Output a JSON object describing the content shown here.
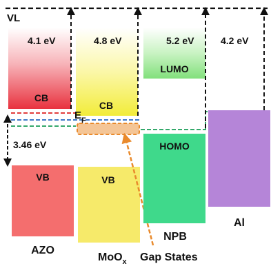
{
  "diagram": {
    "vacuum_level": "VL",
    "materials": {
      "azo": {
        "name": "AZO",
        "work_function": "4.1 eV",
        "cb": "CB",
        "vb": "VB",
        "gap": "3.46 eV",
        "cb_color": "#e8323f",
        "vb_color": "#f46e6e"
      },
      "moox": {
        "name_main": "MoO",
        "name_sub": "x",
        "work_function": "4.8 eV",
        "cb": "CB",
        "vb": "VB",
        "fermi_main": "E",
        "fermi_sub": "F",
        "cb_color": "#f3ee2a",
        "vb_color": "#f6ea6a"
      },
      "npb": {
        "name": "NPB",
        "work_function": "5.2 eV",
        "lumo": "LUMO",
        "homo": "HOMO",
        "lumo_color": "#7fe07a",
        "homo_color": "#3fd98b"
      },
      "al": {
        "name": "Al",
        "work_function": "4.2 eV",
        "color": "#b585d8"
      }
    },
    "gap_states": {
      "label": "Gap States",
      "color": "#e98a2c"
    },
    "level_colors": {
      "red": "#e23b3b",
      "blue": "#3b78c8",
      "green": "#33a86a"
    }
  }
}
